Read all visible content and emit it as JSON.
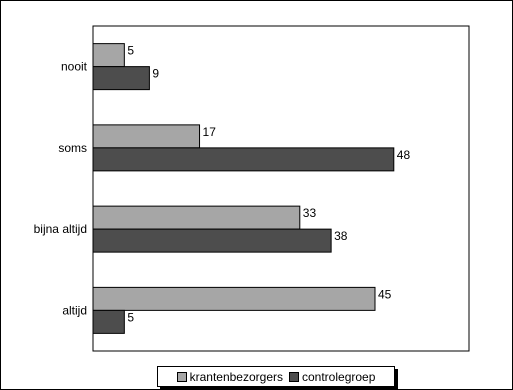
{
  "chart_data": {
    "type": "bar",
    "orientation": "horizontal",
    "categories": [
      "nooit",
      "soms",
      "bijna altijd",
      "altijd"
    ],
    "series": [
      {
        "name": "krantenbezorgers",
        "values": [
          5,
          17,
          33,
          45
        ],
        "color": "#a6a6a6"
      },
      {
        "name": "controlegroep",
        "values": [
          9,
          48,
          38,
          5
        ],
        "color": "#4d4d4d"
      }
    ],
    "xlim": [
      0,
      60
    ],
    "grid": false,
    "legend": "bottom"
  }
}
